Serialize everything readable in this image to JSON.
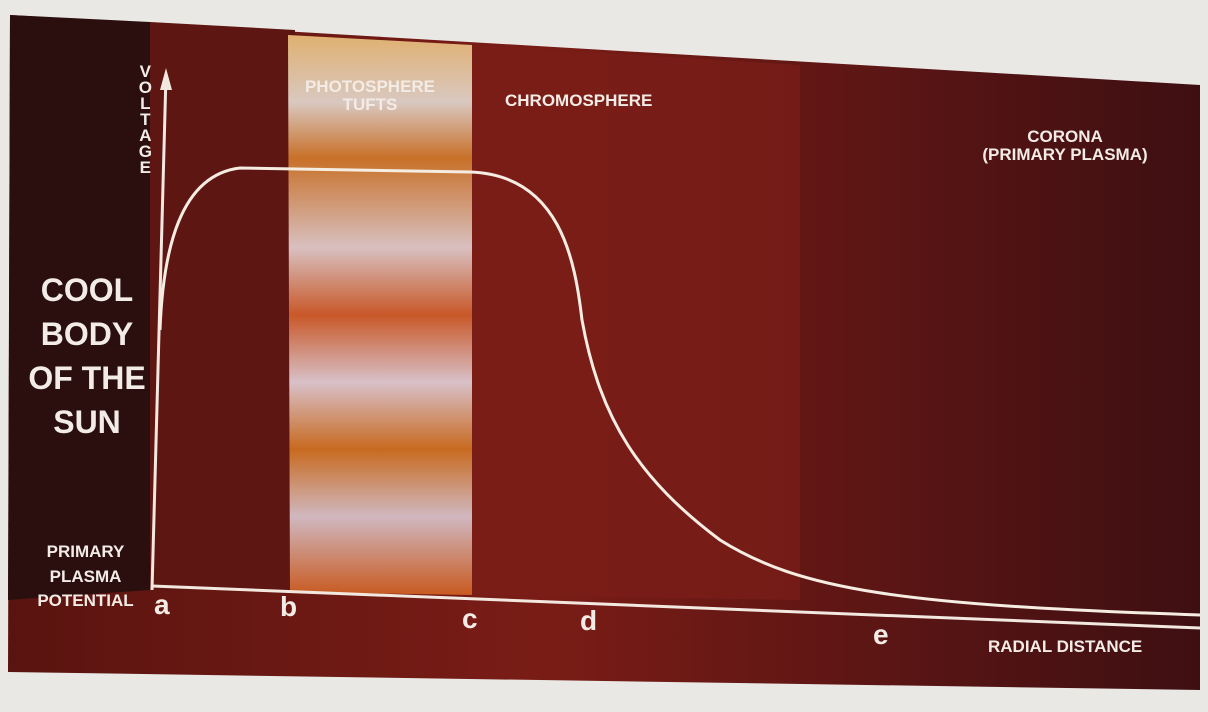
{
  "diagram": {
    "y_axis_label": "VOLTAGE",
    "x_axis_label": "RADIAL DISTANCE",
    "origin_label": [
      "PRIMARY",
      "PLASMA",
      "POTENTIAL"
    ],
    "body_label": [
      "COOL",
      "BODY",
      "OF THE",
      "SUN"
    ],
    "regions": [
      {
        "label": [
          "PHOTOSPHERE",
          "TUFTS"
        ]
      },
      {
        "label": [
          "CHROMOSPHERE"
        ]
      },
      {
        "label": [
          "CORONA",
          "(PRIMARY PLASMA)"
        ]
      }
    ],
    "points": [
      "a",
      "b",
      "c",
      "d",
      "e"
    ]
  }
}
